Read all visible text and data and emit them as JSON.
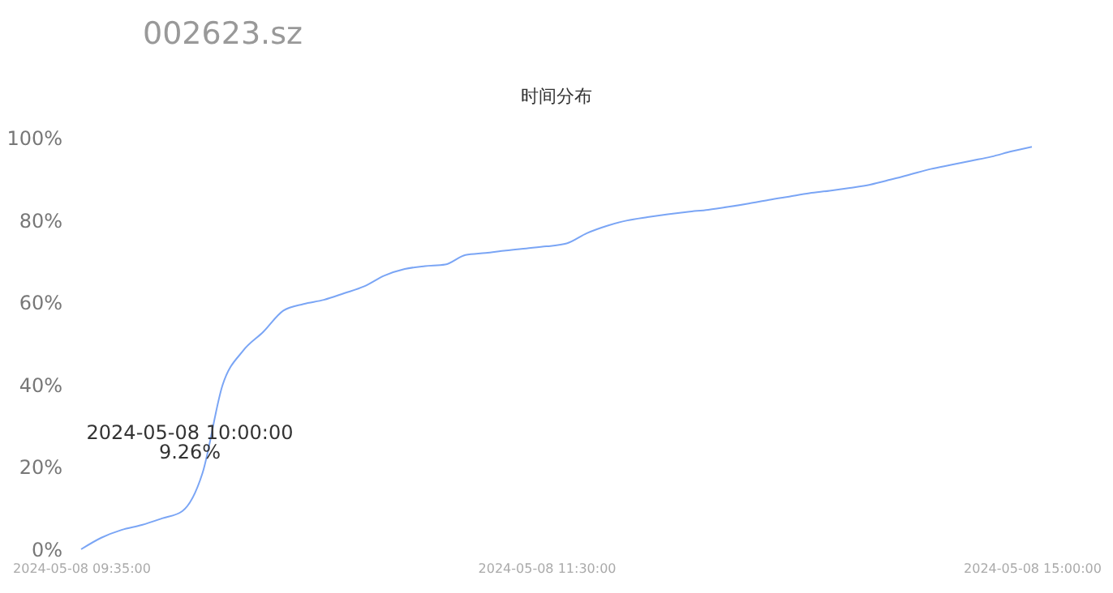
{
  "chart_data": {
    "type": "line",
    "title": "002623.sz",
    "subtitle": "时间分布",
    "categories": [
      "2024-05-08 09:35:00",
      null,
      null,
      null,
      null,
      null,
      null,
      null,
      null,
      null,
      null,
      null,
      null,
      null,
      null,
      null,
      null,
      null,
      null,
      null,
      null,
      null,
      null,
      "2024-05-08 11:30:00",
      null,
      null,
      null,
      null,
      null,
      null,
      null,
      null,
      null,
      null,
      null,
      null,
      null,
      null,
      null,
      null,
      null,
      null,
      null,
      null,
      null,
      null,
      null,
      "2024-05-08 15:00:00"
    ],
    "series": [
      {
        "color": "#7aa5f5",
        "values": [
          0,
          2.8,
          4.7,
          5.9,
          7.5,
          9.26,
          18.5,
          40,
          48.2,
          52.8,
          58,
          59.6,
          60.6,
          62.2,
          63.9,
          66.5,
          68.1,
          68.8,
          69.2,
          71.5,
          72,
          72.6,
          73.1,
          73.6,
          74.3,
          76.8,
          78.6,
          79.9,
          80.7,
          81.4,
          82,
          82.5,
          83.2,
          84,
          84.9,
          85.7,
          86.5,
          87.1,
          87.8,
          88.6,
          89.8,
          91.1,
          92.4,
          93.4,
          94.4,
          95.4,
          96.7,
          97.8
        ]
      }
    ],
    "ylim": [
      0,
      100
    ],
    "yticks": [
      {
        "value": 0,
        "label": "0%"
      },
      {
        "value": 20,
        "label": "20%"
      },
      {
        "value": 40,
        "label": "40%"
      },
      {
        "value": 60,
        "label": "60%"
      },
      {
        "value": 80,
        "label": "80%"
      },
      {
        "value": 100,
        "label": "100%"
      }
    ],
    "annotations": [
      "2024-05-08 10:00:00",
      "9.26%"
    ],
    "grid": false,
    "legend": false,
    "marker": "none"
  }
}
